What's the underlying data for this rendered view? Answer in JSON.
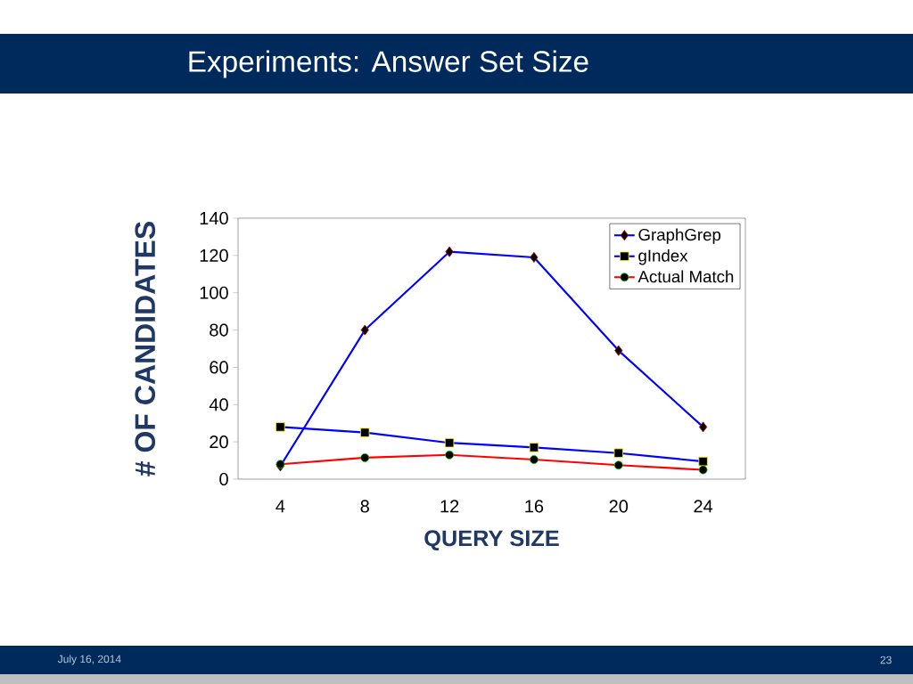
{
  "chart_data": {
    "type": "line",
    "title": "Experiments: Answer Set Size",
    "xlabel": "QUERY SIZE",
    "ylabel": "# OF CANDIDATES",
    "categories": [
      "4",
      "8",
      "12",
      "16",
      "20",
      "24"
    ],
    "series": [
      {
        "name": "GraphGrep",
        "color": "#0000ff",
        "marker": "diamond",
        "values": [
          7,
          80,
          122,
          119,
          69,
          28
        ]
      },
      {
        "name": "gIndex",
        "color": "#0000ff",
        "marker": "square",
        "values": [
          28,
          25,
          19.5,
          17,
          14,
          9.5
        ]
      },
      {
        "name": "Actual Match",
        "color": "#ff0000",
        "marker": "circle",
        "values": [
          8,
          11.5,
          13,
          10.5,
          7.5,
          5
        ]
      }
    ],
    "ylim": [
      0,
      140
    ],
    "yticks": [
      0,
      20,
      40,
      60,
      80,
      100,
      120,
      140
    ],
    "grid": false,
    "legend": "top right",
    "annotations": [
      "July 16, 2014",
      "23"
    ]
  }
}
